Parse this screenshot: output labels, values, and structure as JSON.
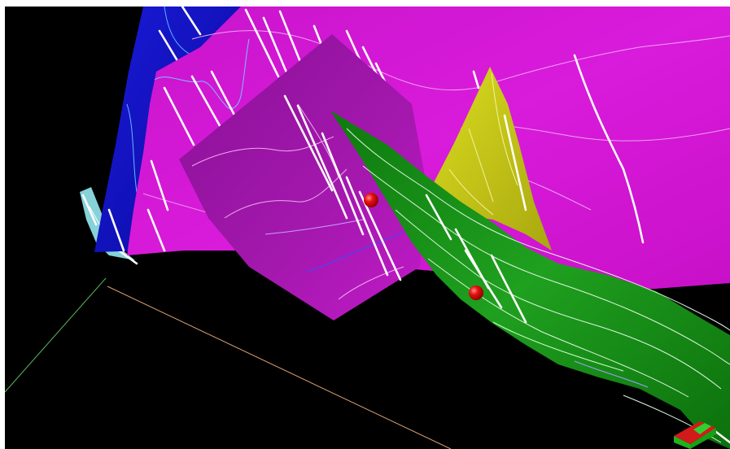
{
  "viewer": {
    "background_color": "#000000",
    "surface_colors": {
      "blue_surface": "#0a18c8",
      "magenta_surface": "#d218d4",
      "dark_magenta_panel": "#9a14a4",
      "green_surface": "#128a12",
      "yellow_surface": "#c8c816",
      "cyan_fragment": "#8ad8dc"
    },
    "marker_color": "#e01010",
    "axis_colors": {
      "green_axis": "#5cb85c",
      "orange_axis": "#d8a070"
    },
    "orientation_widget": {
      "icon": "orientation-cube-icon",
      "colors": [
        "#d21a1a",
        "#1eb41e"
      ]
    }
  }
}
